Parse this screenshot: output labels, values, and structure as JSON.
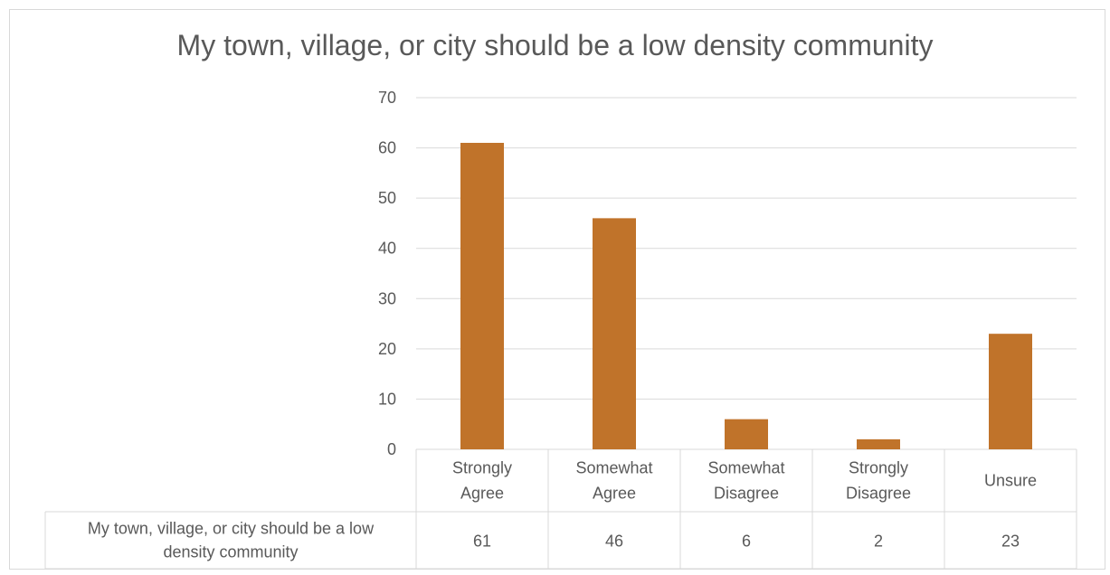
{
  "chart_data": {
    "type": "bar",
    "title": "My town, village, or city should be a low density community",
    "categories": [
      [
        "Strongly",
        "Agree"
      ],
      [
        "Somewhat",
        "Agree"
      ],
      [
        "Somewhat",
        "Disagree"
      ],
      [
        "Strongly",
        "Disagree"
      ],
      [
        "Unsure"
      ]
    ],
    "series": [
      {
        "name": "My town, village, or city should be a low density community",
        "name_lines": [
          "My town, village, or city should be a low",
          "density community"
        ],
        "values": [
          61,
          46,
          6,
          2,
          23
        ],
        "color": "#C0732A"
      }
    ],
    "ylim": [
      0,
      70
    ],
    "yticks": [
      0,
      10,
      20,
      30,
      40,
      50,
      60,
      70
    ],
    "grid": true,
    "data_table": true
  }
}
